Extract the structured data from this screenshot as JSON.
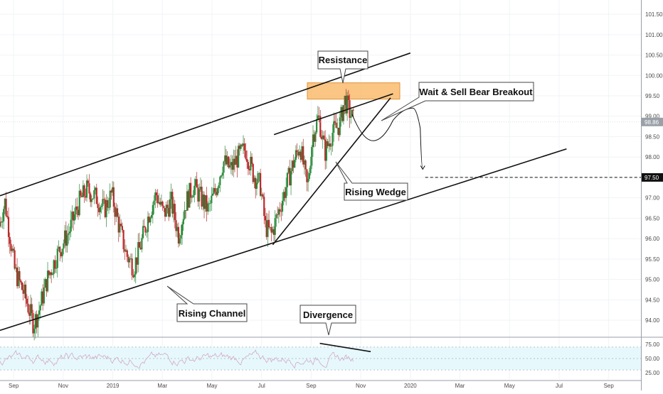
{
  "chart_data": {
    "type": "candlestick",
    "main_panel": {
      "y_ticks": [
        "101.50",
        "101.00",
        "100.50",
        "100.00",
        "99.50",
        "99.00",
        "98.50",
        "98.00",
        "97.50",
        "97.00",
        "96.50",
        "96.00",
        "95.50",
        "95.00",
        "94.50",
        "94.00"
      ],
      "ylim": [
        93.6,
        101.85
      ],
      "x_ticks": [
        {
          "label": "Sep",
          "month_index": 0
        },
        {
          "label": "Nov",
          "month_index": 2
        },
        {
          "label": "2019",
          "month_index": 4
        },
        {
          "label": "Mar",
          "month_index": 6
        },
        {
          "label": "May",
          "month_index": 8
        },
        {
          "label": "Jul",
          "month_index": 10
        },
        {
          "label": "Sep",
          "month_index": 12
        },
        {
          "label": "Nov",
          "month_index": 14
        },
        {
          "label": "2020",
          "month_index": 16
        },
        {
          "label": "Mar",
          "month_index": 18
        },
        {
          "label": "May",
          "month_index": 20
        },
        {
          "label": "Jul",
          "month_index": 22
        },
        {
          "label": "Sep",
          "month_index": 24
        }
      ],
      "xlim": [
        -0.55,
        25.3
      ],
      "price_path": [
        [
          -0.55,
          96.3
        ],
        [
          -0.3,
          96.9
        ],
        [
          0.1,
          95.2
        ],
        [
          0.5,
          94.6
        ],
        [
          0.85,
          93.9
        ],
        [
          1.05,
          94.2
        ],
        [
          1.4,
          95.0
        ],
        [
          1.8,
          95.6
        ],
        [
          2.3,
          96.2
        ],
        [
          2.7,
          96.9
        ],
        [
          3.0,
          97.2
        ],
        [
          3.4,
          97.0
        ],
        [
          3.7,
          96.7
        ],
        [
          4.0,
          97.1
        ],
        [
          4.3,
          96.3
        ],
        [
          4.6,
          95.6
        ],
        [
          4.9,
          95.3
        ],
        [
          5.2,
          95.9
        ],
        [
          5.5,
          96.6
        ],
        [
          5.8,
          97.1
        ],
        [
          6.1,
          96.6
        ],
        [
          6.4,
          96.9
        ],
        [
          6.7,
          96.1
        ],
        [
          7.0,
          96.9
        ],
        [
          7.3,
          97.3
        ],
        [
          7.6,
          97.0
        ],
        [
          7.9,
          96.7
        ],
        [
          8.2,
          97.2
        ],
        [
          8.5,
          97.9
        ],
        [
          8.8,
          97.7
        ],
        [
          9.1,
          98.0
        ],
        [
          9.4,
          98.2
        ],
        [
          9.7,
          97.6
        ],
        [
          10.0,
          97.3
        ],
        [
          10.2,
          96.3
        ],
        [
          10.45,
          96.1
        ],
        [
          10.7,
          96.6
        ],
        [
          11.0,
          97.2
        ],
        [
          11.3,
          97.8
        ],
        [
          11.6,
          98.3
        ],
        [
          11.9,
          97.2
        ],
        [
          12.1,
          98.5
        ],
        [
          12.35,
          99.0
        ],
        [
          12.6,
          98.1
        ],
        [
          12.9,
          98.6
        ],
        [
          13.2,
          98.8
        ],
        [
          13.4,
          99.4
        ],
        [
          13.6,
          99.1
        ],
        [
          13.75,
          98.9
        ]
      ],
      "rising_channel": {
        "upper": [
          [
            -0.55,
            97.05
          ],
          [
            16.0,
            100.55
          ]
        ],
        "lower": [
          [
            -0.55,
            93.75
          ],
          [
            22.3,
            98.2
          ]
        ]
      },
      "rising_wedge": {
        "upper": [
          [
            10.5,
            98.55
          ],
          [
            15.3,
            99.55
          ]
        ],
        "lower": [
          [
            10.45,
            95.85
          ],
          [
            15.2,
            99.45
          ]
        ]
      },
      "resistance_zone": {
        "y_range": [
          99.42,
          99.82
        ],
        "x_range": [
          12.5,
          16.3
        ],
        "color": "#f9b25a"
      },
      "projection_path": [
        [
          13.65,
          99.05
        ],
        [
          14.5,
          98.4
        ],
        [
          15.3,
          98.9
        ],
        [
          16.1,
          99.2
        ],
        [
          16.4,
          98.7
        ],
        [
          16.5,
          97.7
        ]
      ],
      "target_level": {
        "value": 97.5,
        "label": "97.50",
        "from_x": 16.6
      },
      "current_price": {
        "value": 98.86,
        "label": "98.86"
      },
      "annotations": [
        {
          "text": "Resistance"
        },
        {
          "text": "Wait & Sell Bear Breakout"
        },
        {
          "text": "Rising Wedge"
        },
        {
          "text": "Rising Channel"
        }
      ]
    },
    "rsi_panel": {
      "y_ticks": [
        "75.00",
        "50.00",
        "25.00"
      ],
      "ylim": [
        14,
        86
      ],
      "band": [
        30,
        70
      ],
      "divergence_line": [
        [
          12.35,
          76.5
        ],
        [
          14.4,
          62.0
        ]
      ],
      "annotation": {
        "text": "Divergence"
      }
    },
    "colors": {
      "up": "#2a8a3a",
      "down": "#b82b2b",
      "line": "#111111",
      "rsi_band": "#e6f8fc",
      "rsi_line": "#d4a7c5"
    }
  }
}
